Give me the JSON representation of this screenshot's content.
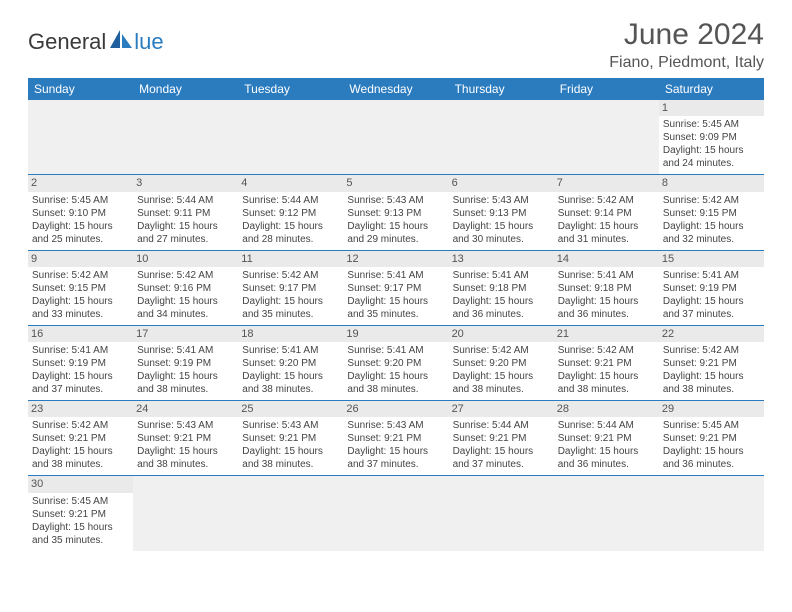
{
  "logo": {
    "part1": "General",
    "part2": "lue",
    "color_dark": "#3a3a3a",
    "color_blue": "#2b7bbf"
  },
  "title": "June 2024",
  "location": "Fiano, Piedmont, Italy",
  "weekdays": [
    "Sunday",
    "Monday",
    "Tuesday",
    "Wednesday",
    "Thursday",
    "Friday",
    "Saturday"
  ],
  "colors": {
    "header_bg": "#2b7bbf",
    "header_fg": "#ffffff",
    "daynum_bg": "#eaeaea",
    "empty_bg": "#f0f0f0",
    "row_divider": "#2b7bbf"
  },
  "layout": {
    "first_weekday_index": 6,
    "days_in_month": 30
  },
  "days": {
    "1": {
      "sunrise": "5:45 AM",
      "sunset": "9:09 PM",
      "daylight": "15 hours and 24 minutes."
    },
    "2": {
      "sunrise": "5:45 AM",
      "sunset": "9:10 PM",
      "daylight": "15 hours and 25 minutes."
    },
    "3": {
      "sunrise": "5:44 AM",
      "sunset": "9:11 PM",
      "daylight": "15 hours and 27 minutes."
    },
    "4": {
      "sunrise": "5:44 AM",
      "sunset": "9:12 PM",
      "daylight": "15 hours and 28 minutes."
    },
    "5": {
      "sunrise": "5:43 AM",
      "sunset": "9:13 PM",
      "daylight": "15 hours and 29 minutes."
    },
    "6": {
      "sunrise": "5:43 AM",
      "sunset": "9:13 PM",
      "daylight": "15 hours and 30 minutes."
    },
    "7": {
      "sunrise": "5:42 AM",
      "sunset": "9:14 PM",
      "daylight": "15 hours and 31 minutes."
    },
    "8": {
      "sunrise": "5:42 AM",
      "sunset": "9:15 PM",
      "daylight": "15 hours and 32 minutes."
    },
    "9": {
      "sunrise": "5:42 AM",
      "sunset": "9:15 PM",
      "daylight": "15 hours and 33 minutes."
    },
    "10": {
      "sunrise": "5:42 AM",
      "sunset": "9:16 PM",
      "daylight": "15 hours and 34 minutes."
    },
    "11": {
      "sunrise": "5:42 AM",
      "sunset": "9:17 PM",
      "daylight": "15 hours and 35 minutes."
    },
    "12": {
      "sunrise": "5:41 AM",
      "sunset": "9:17 PM",
      "daylight": "15 hours and 35 minutes."
    },
    "13": {
      "sunrise": "5:41 AM",
      "sunset": "9:18 PM",
      "daylight": "15 hours and 36 minutes."
    },
    "14": {
      "sunrise": "5:41 AM",
      "sunset": "9:18 PM",
      "daylight": "15 hours and 36 minutes."
    },
    "15": {
      "sunrise": "5:41 AM",
      "sunset": "9:19 PM",
      "daylight": "15 hours and 37 minutes."
    },
    "16": {
      "sunrise": "5:41 AM",
      "sunset": "9:19 PM",
      "daylight": "15 hours and 37 minutes."
    },
    "17": {
      "sunrise": "5:41 AM",
      "sunset": "9:19 PM",
      "daylight": "15 hours and 38 minutes."
    },
    "18": {
      "sunrise": "5:41 AM",
      "sunset": "9:20 PM",
      "daylight": "15 hours and 38 minutes."
    },
    "19": {
      "sunrise": "5:41 AM",
      "sunset": "9:20 PM",
      "daylight": "15 hours and 38 minutes."
    },
    "20": {
      "sunrise": "5:42 AM",
      "sunset": "9:20 PM",
      "daylight": "15 hours and 38 minutes."
    },
    "21": {
      "sunrise": "5:42 AM",
      "sunset": "9:21 PM",
      "daylight": "15 hours and 38 minutes."
    },
    "22": {
      "sunrise": "5:42 AM",
      "sunset": "9:21 PM",
      "daylight": "15 hours and 38 minutes."
    },
    "23": {
      "sunrise": "5:42 AM",
      "sunset": "9:21 PM",
      "daylight": "15 hours and 38 minutes."
    },
    "24": {
      "sunrise": "5:43 AM",
      "sunset": "9:21 PM",
      "daylight": "15 hours and 38 minutes."
    },
    "25": {
      "sunrise": "5:43 AM",
      "sunset": "9:21 PM",
      "daylight": "15 hours and 38 minutes."
    },
    "26": {
      "sunrise": "5:43 AM",
      "sunset": "9:21 PM",
      "daylight": "15 hours and 37 minutes."
    },
    "27": {
      "sunrise": "5:44 AM",
      "sunset": "9:21 PM",
      "daylight": "15 hours and 37 minutes."
    },
    "28": {
      "sunrise": "5:44 AM",
      "sunset": "9:21 PM",
      "daylight": "15 hours and 36 minutes."
    },
    "29": {
      "sunrise": "5:45 AM",
      "sunset": "9:21 PM",
      "daylight": "15 hours and 36 minutes."
    },
    "30": {
      "sunrise": "5:45 AM",
      "sunset": "9:21 PM",
      "daylight": "15 hours and 35 minutes."
    }
  },
  "labels": {
    "sunrise": "Sunrise:",
    "sunset": "Sunset:",
    "daylight": "Daylight:"
  }
}
